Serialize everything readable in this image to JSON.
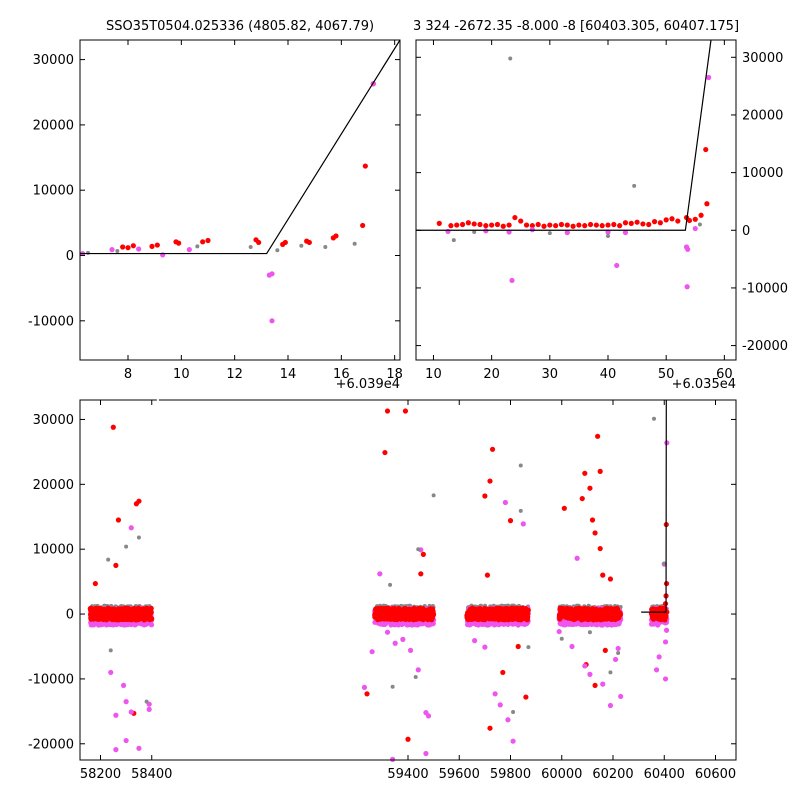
{
  "chart_data": [
    {
      "type": "scatter",
      "title": "SSO35T0504.025336 (4805.82, 4067.79)",
      "xlim": [
        6.2,
        18.2
      ],
      "ylim": [
        -16000,
        33000
      ],
      "x_offset_label": "+6.039e4",
      "xticks": [
        8,
        10,
        12,
        14,
        16,
        18
      ],
      "yticks": [
        -10000,
        0,
        10000,
        20000,
        30000
      ],
      "model_line": {
        "x": [
          6.2,
          13.2,
          18.2
        ],
        "y": [
          300,
          300,
          33000
        ]
      },
      "series": [
        {
          "color": "#ff0000",
          "points": [
            [
              8.2,
              1500
            ],
            [
              7.8,
              1300
            ],
            [
              8.0,
              1200
            ],
            [
              8.9,
              1400
            ],
            [
              9.1,
              1600
            ],
            [
              9.8,
              2100
            ],
            [
              9.9,
              1900
            ],
            [
              10.8,
              2100
            ],
            [
              11.0,
              2300
            ],
            [
              12.8,
              2400
            ],
            [
              12.9,
              2000
            ],
            [
              13.8,
              1700
            ],
            [
              13.9,
              2000
            ],
            [
              14.7,
              2200
            ],
            [
              14.8,
              2000
            ],
            [
              15.7,
              2700
            ],
            [
              15.8,
              3000
            ],
            [
              16.8,
              4600
            ],
            [
              16.9,
              13700
            ],
            [
              17.2,
              26300
            ]
          ]
        },
        {
          "color": "#ee55ee",
          "points": [
            [
              6.3,
              300
            ],
            [
              7.4,
              900
            ],
            [
              8.4,
              1000
            ],
            [
              9.3,
              100
            ],
            [
              10.3,
              900
            ],
            [
              13.3,
              -3000
            ],
            [
              13.4,
              -2800
            ],
            [
              13.4,
              -10000
            ],
            [
              17.2,
              26300
            ]
          ]
        },
        {
          "color": "#888888",
          "points": [
            [
              6.5,
              400
            ],
            [
              7.6,
              700
            ],
            [
              10.6,
              1400
            ],
            [
              12.6,
              1300
            ],
            [
              13.6,
              800
            ],
            [
              14.5,
              1500
            ],
            [
              15.4,
              1300
            ],
            [
              16.5,
              1800
            ]
          ]
        }
      ]
    },
    {
      "type": "scatter",
      "title": "3 324 -2672.35 -8.000 -8 [60403.305, 60407.175]",
      "xlim": [
        7,
        62
      ],
      "ylim": [
        -22500,
        33000
      ],
      "x_offset_label": "+6.035e4",
      "xticks": [
        10,
        20,
        30,
        40,
        50,
        60
      ],
      "yticks": [
        -20000,
        -10000,
        0,
        10000,
        20000,
        30000
      ],
      "model_line": {
        "x": [
          7,
          53.3,
          57.7
        ],
        "y": [
          0,
          0,
          33000
        ]
      },
      "series": [
        {
          "color": "#ff0000",
          "points": [
            [
              11,
              1200
            ],
            [
              13,
              800
            ],
            [
              14,
              900
            ],
            [
              15,
              1000
            ],
            [
              16,
              1300
            ],
            [
              17,
              1100
            ],
            [
              18,
              1000
            ],
            [
              19,
              800
            ],
            [
              20,
              900
            ],
            [
              21,
              1000
            ],
            [
              22,
              700
            ],
            [
              23,
              900
            ],
            [
              24,
              2200
            ],
            [
              25,
              1600
            ],
            [
              26,
              900
            ],
            [
              27,
              800
            ],
            [
              28,
              1000
            ],
            [
              29,
              700
            ],
            [
              30,
              900
            ],
            [
              31,
              800
            ],
            [
              32,
              1000
            ],
            [
              33,
              900
            ],
            [
              34,
              700
            ],
            [
              35,
              900
            ],
            [
              36,
              800
            ],
            [
              37,
              1000
            ],
            [
              38,
              900
            ],
            [
              39,
              800
            ],
            [
              40,
              900
            ],
            [
              41,
              1000
            ],
            [
              42,
              800
            ],
            [
              43,
              1300
            ],
            [
              44,
              1200
            ],
            [
              45,
              1400
            ],
            [
              46,
              1100
            ],
            [
              47,
              1000
            ],
            [
              48,
              1500
            ],
            [
              49,
              1300
            ],
            [
              50,
              1800
            ],
            [
              51,
              2000
            ],
            [
              52,
              1600
            ],
            [
              53.5,
              2200
            ],
            [
              54,
              1700
            ],
            [
              55,
              1900
            ],
            [
              56,
              2600
            ],
            [
              57,
              4600
            ],
            [
              56.8,
              14000
            ]
          ]
        },
        {
          "color": "#ee55ee",
          "points": [
            [
              12.5,
              -200
            ],
            [
              19,
              -100
            ],
            [
              23,
              -300
            ],
            [
              23.5,
              -8700
            ],
            [
              27,
              100
            ],
            [
              33,
              -400
            ],
            [
              40,
              -300
            ],
            [
              41.5,
              -6100
            ],
            [
              43,
              -400
            ],
            [
              53.5,
              -2900
            ],
            [
              53.7,
              -3300
            ],
            [
              53.6,
              -9800
            ],
            [
              55,
              300
            ],
            [
              57.3,
              26500
            ]
          ]
        },
        {
          "color": "#888888",
          "points": [
            [
              13.5,
              -1700
            ],
            [
              17,
              -300
            ],
            [
              23.2,
              29800
            ],
            [
              30,
              -500
            ],
            [
              40,
              -1000
            ],
            [
              44.5,
              7700
            ],
            [
              55.8,
              1000
            ]
          ]
        }
      ]
    },
    {
      "type": "scatter",
      "xlim": [
        58120,
        60680
      ],
      "ylim": [
        -22500,
        33000
      ],
      "xticks": [
        58200,
        58400,
        59400,
        59600,
        59800,
        60000,
        60200,
        60400,
        60600
      ],
      "yticks": [
        -20000,
        -10000,
        0,
        10000,
        20000,
        30000
      ],
      "segments": [
        [
          58160,
          58400
        ],
        [
          59270,
          59500
        ],
        [
          59630,
          59870
        ],
        [
          59990,
          60230
        ],
        [
          60350,
          60410
        ]
      ],
      "model_line": {
        "x": [
          60310,
          60403,
          60407,
          60408
        ],
        "y": [
          300,
          300,
          300,
          33000
        ]
      },
      "outliers": [
        {
          "color": "#ff0000",
          "points": [
            [
              58180,
              4700
            ],
            [
              58250,
              28800
            ],
            [
              58260,
              7500
            ],
            [
              58270,
              14500
            ],
            [
              58330,
              -15300
            ],
            [
              58340,
              17000
            ],
            [
              58350,
              17400
            ],
            [
              59240,
              -12300
            ],
            [
              59310,
              24900
            ],
            [
              59320,
              31300
            ],
            [
              59390,
              31300
            ],
            [
              59400,
              -19300
            ],
            [
              59460,
              9200
            ],
            [
              59450,
              6200
            ],
            [
              59720,
              -17600
            ],
            [
              59730,
              25400
            ],
            [
              59720,
              20500
            ],
            [
              59700,
              18200
            ],
            [
              59710,
              6000
            ],
            [
              59770,
              -9000
            ],
            [
              59800,
              14400
            ],
            [
              59830,
              -5000
            ],
            [
              59860,
              -12800
            ],
            [
              60010,
              16300
            ],
            [
              60080,
              17800
            ],
            [
              60090,
              21700
            ],
            [
              60110,
              19400
            ],
            [
              60140,
              27400
            ],
            [
              60150,
              22000
            ],
            [
              60120,
              14500
            ],
            [
              60130,
              12500
            ],
            [
              60150,
              10100
            ],
            [
              60160,
              6000
            ],
            [
              60190,
              5400
            ],
            [
              60095,
              -7800
            ],
            [
              60130,
              -11000
            ],
            [
              60170,
              -5600
            ],
            [
              60405,
              1600
            ],
            [
              60407,
              2800
            ],
            [
              60409,
              4700
            ],
            [
              60408,
              13800
            ]
          ]
        },
        {
          "color": "#ee55ee",
          "points": [
            [
              58180,
              -1500
            ],
            [
              58240,
              -9000
            ],
            [
              58260,
              -15600
            ],
            [
              58290,
              -11000
            ],
            [
              58300,
              -13500
            ],
            [
              58320,
              13300
            ],
            [
              58320,
              -15100
            ],
            [
              58350,
              -20700
            ],
            [
              58300,
              -19500
            ],
            [
              58390,
              -14700
            ],
            [
              58390,
              -13900
            ],
            [
              58260,
              -20900
            ],
            [
              59230,
              -11300
            ],
            [
              59260,
              -5800
            ],
            [
              59290,
              6200
            ],
            [
              59300,
              -1500
            ],
            [
              59320,
              -2800
            ],
            [
              59350,
              -4500
            ],
            [
              59380,
              -3900
            ],
            [
              59410,
              -5600
            ],
            [
              59440,
              -8600
            ],
            [
              59470,
              -15200
            ],
            [
              59480,
              -15700
            ],
            [
              59470,
              -21500
            ],
            [
              59340,
              -22400
            ],
            [
              59450,
              9900
            ],
            [
              59660,
              -4100
            ],
            [
              59700,
              -5100
            ],
            [
              59740,
              -12300
            ],
            [
              59760,
              -14000
            ],
            [
              59790,
              -16300
            ],
            [
              59810,
              -19600
            ],
            [
              59850,
              13900
            ],
            [
              59780,
              17200
            ],
            [
              59990,
              -2700
            ],
            [
              60040,
              -5000
            ],
            [
              60060,
              8600
            ],
            [
              60090,
              -8000
            ],
            [
              60110,
              -9300
            ],
            [
              60160,
              -10800
            ],
            [
              60190,
              -14100
            ],
            [
              60230,
              -12700
            ],
            [
              60210,
              -7000
            ],
            [
              60220,
              -5300
            ],
            [
              60370,
              -8600
            ],
            [
              60380,
              -6600
            ],
            [
              60405,
              -10000
            ],
            [
              60409,
              -2500
            ],
            [
              60405,
              -4300
            ],
            [
              60410,
              26400
            ],
            [
              60400,
              7700
            ]
          ]
        },
        {
          "color": "#888888",
          "points": [
            [
              58230,
              8400
            ],
            [
              58240,
              -5600
            ],
            [
              58300,
              10400
            ],
            [
              58350,
              11800
            ],
            [
              58380,
              -13500
            ],
            [
              59330,
              4500
            ],
            [
              59340,
              -11200
            ],
            [
              59440,
              10000
            ],
            [
              59430,
              -9700
            ],
            [
              59500,
              18300
            ],
            [
              59810,
              -15100
            ],
            [
              59840,
              15900
            ],
            [
              59840,
              22900
            ],
            [
              59870,
              -5100
            ],
            [
              60000,
              -3800
            ],
            [
              60110,
              -2800
            ],
            [
              60190,
              -9000
            ],
            [
              60220,
              -6000
            ],
            [
              60360,
              30100
            ],
            [
              60400,
              7800
            ]
          ]
        }
      ]
    }
  ]
}
